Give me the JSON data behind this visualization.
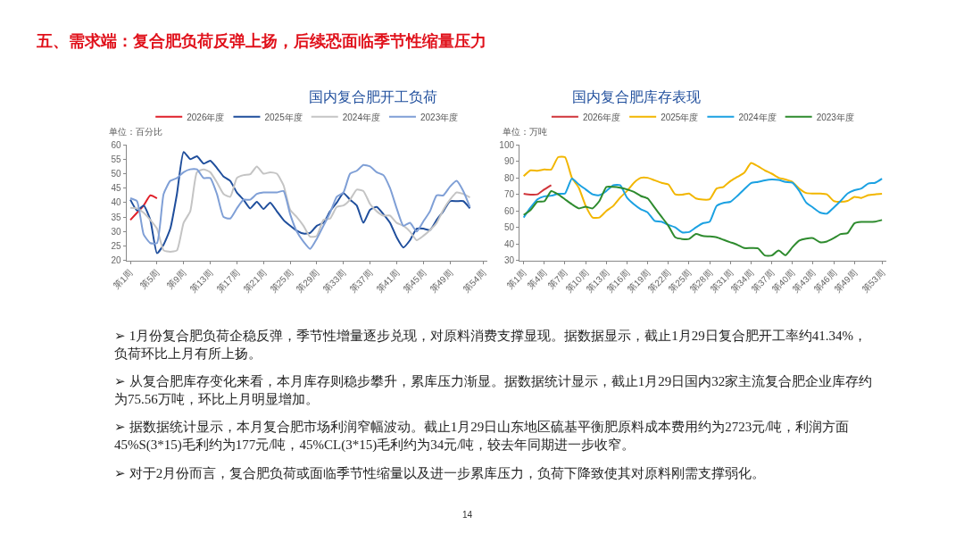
{
  "chart_data": [
    {
      "type": "line",
      "title": "国内复合肥开工负荷",
      "ylabel": "单位：百分比",
      "legend": "top",
      "marker": "none",
      "grid": false,
      "categories": [
        "第1周",
        null,
        null,
        null,
        "第5周",
        null,
        null,
        null,
        "第9周",
        null,
        null,
        null,
        "第13周",
        null,
        null,
        null,
        "第17周",
        null,
        null,
        null,
        "第21周",
        null,
        null,
        null,
        "第25周",
        null,
        null,
        null,
        "第29周",
        null,
        null,
        null,
        "第33周",
        null,
        null,
        null,
        "第37周",
        null,
        null,
        null,
        "第41周",
        null,
        null,
        null,
        "第45周",
        null,
        null,
        null,
        "第49周",
        null,
        null,
        null,
        null,
        "第54周"
      ],
      "ylim": [
        20,
        60
      ],
      "yticks": [
        20,
        25,
        30,
        35,
        40,
        45,
        50,
        55,
        60
      ],
      "series": [
        {
          "name": "2026年度",
          "color": "#e0202a",
          "values": [
            34,
            36.5,
            39,
            42.5,
            41.5,
            null,
            null,
            null,
            null,
            null,
            null,
            null,
            null,
            null,
            null,
            null,
            null,
            null,
            null,
            null,
            null,
            null,
            null,
            null,
            null,
            null,
            null,
            null,
            null,
            null,
            null,
            null,
            null,
            null,
            null,
            null,
            null,
            null,
            null,
            null,
            null,
            null,
            null,
            null,
            null,
            null,
            null,
            null,
            null,
            null,
            null,
            null,
            null,
            null
          ]
        },
        {
          "name": "2025年度",
          "color": "#1f4e9c",
          "values": [
            41,
            37.3,
            39,
            34,
            22.5,
            25.5,
            31,
            43,
            57.5,
            55,
            56,
            53.5,
            54.5,
            52,
            49,
            47.5,
            43.5,
            41,
            38,
            40.3,
            37.8,
            40,
            37,
            34,
            32,
            30.3,
            29.3,
            29.5,
            32,
            33,
            37,
            40,
            43.3,
            41,
            39,
            33,
            37.5,
            38.5,
            36,
            33,
            28,
            24.5,
            27,
            31,
            31,
            30.5,
            34,
            37,
            40.5,
            40.5,
            40.5,
            38,
            null,
            null
          ]
        },
        {
          "name": "2024年度",
          "color": "#c4c4c4",
          "values": [
            38.2,
            38,
            36.5,
            34,
            31,
            23.5,
            23,
            23.5,
            33,
            37,
            50.5,
            51.5,
            50.5,
            47,
            43,
            42,
            48.5,
            49.5,
            49.8,
            52.5,
            50,
            50.5,
            50,
            46,
            37.5,
            35,
            32,
            28.2,
            28.5,
            34,
            34.5,
            38.5,
            39,
            41,
            44.5,
            44,
            39.5,
            37,
            35.5,
            35.5,
            33,
            32,
            30,
            27,
            28.5,
            30.5,
            33,
            37.5,
            41,
            43.5,
            43,
            41.8,
            null,
            null
          ]
        },
        {
          "name": "2023年度",
          "color": "#7f9fd6",
          "values": [
            41.5,
            40.5,
            29,
            26,
            26,
            43,
            47.5,
            48.5,
            50.5,
            51.5,
            51.5,
            48.5,
            48.5,
            43,
            35,
            34.5,
            38,
            41,
            41,
            43,
            43.5,
            43.5,
            43.5,
            44,
            36,
            30,
            26.5,
            24,
            27.5,
            32,
            36.5,
            42,
            43.5,
            50,
            51,
            53,
            52.5,
            50.5,
            49.5,
            45,
            38,
            32,
            33,
            30,
            33.5,
            37,
            42.5,
            42.5,
            45.5,
            47.5,
            44,
            38.5,
            null,
            null
          ]
        }
      ]
    },
    {
      "type": "line",
      "title": "国内复合肥库存表现",
      "ylabel": "单位：万吨",
      "legend": "top",
      "marker": "none",
      "grid": false,
      "categories": [
        "第1周",
        null,
        null,
        "第4周",
        null,
        null,
        "第7周",
        null,
        null,
        "第10周",
        null,
        null,
        "第13周",
        null,
        null,
        "第16周",
        null,
        null,
        "第19周",
        null,
        null,
        "第22周",
        null,
        null,
        "第25周",
        null,
        null,
        "第28周",
        null,
        null,
        "第31周",
        null,
        null,
        "第34周",
        null,
        null,
        "第37周",
        null,
        null,
        "第40周",
        null,
        null,
        "第43周",
        null,
        null,
        "第46周",
        null,
        null,
        "第49周",
        null,
        null,
        null,
        "第53周"
      ],
      "ylim": [
        30,
        100
      ],
      "yticks": [
        30,
        40,
        50,
        60,
        70,
        80,
        90,
        100
      ],
      "series": [
        {
          "name": "2026年度",
          "color": "#d0343a",
          "values": [
            70.3,
            69.8,
            70,
            73,
            75.6,
            null,
            null,
            null,
            null,
            null,
            null,
            null,
            null,
            null,
            null,
            null,
            null,
            null,
            null,
            null,
            null,
            null,
            null,
            null,
            null,
            null,
            null,
            null,
            null,
            null,
            null,
            null,
            null,
            null,
            null,
            null,
            null,
            null,
            null,
            null,
            null,
            null,
            null,
            null,
            null,
            null,
            null,
            null,
            null,
            null,
            null,
            null,
            null
          ]
        },
        {
          "name": "2025年度",
          "color": "#f2b600",
          "values": [
            81,
            84.5,
            84.3,
            85,
            85,
            92.5,
            92.5,
            80,
            74,
            63,
            56,
            56,
            60,
            63,
            68,
            72,
            77,
            80,
            80,
            78.5,
            77,
            76,
            70,
            69.8,
            70.5,
            67.5,
            66.8,
            67,
            73.5,
            74.5,
            78,
            80.5,
            83,
            89,
            87,
            84.5,
            82.5,
            80,
            79,
            77.5,
            73.5,
            70.8,
            70.5,
            70.5,
            70,
            66,
            65.5,
            66,
            68.5,
            67.8,
            69.5,
            70,
            70.3
          ]
        },
        {
          "name": "2024年度",
          "color": "#1ba1e2",
          "values": [
            56,
            62,
            67,
            68.8,
            69.2,
            70.3,
            70.5,
            79.5,
            76,
            73,
            70,
            69.5,
            72,
            75.5,
            75.5,
            68,
            64,
            61,
            59,
            54,
            53.5,
            51.5,
            50,
            47,
            47.2,
            50,
            52.5,
            53.5,
            63,
            64.8,
            65.5,
            69,
            73,
            76.8,
            77.5,
            78.5,
            79,
            78.7,
            77.5,
            77,
            72,
            65,
            62,
            59,
            58.3,
            62,
            66,
            70.5,
            72.5,
            73.5,
            76.5,
            77,
            79.5
          ]
        },
        {
          "name": "2023年度",
          "color": "#2e8b2e",
          "values": [
            57.5,
            60.5,
            65.5,
            65.8,
            72,
            70,
            67,
            64,
            61.5,
            62.5,
            61.5,
            66,
            74.5,
            74.5,
            74,
            73,
            71.5,
            69,
            67.5,
            62,
            56.5,
            51,
            44,
            43,
            43,
            46,
            44.8,
            44.5,
            44,
            42.5,
            41,
            39.5,
            37.5,
            37.5,
            37.3,
            33,
            33,
            36,
            33.2,
            38,
            42,
            43.2,
            43.5,
            41,
            41.5,
            43.5,
            46,
            46.5,
            52.5,
            53.3,
            53.3,
            53.5,
            54.5
          ]
        }
      ]
    },
    {
      "type": "other",
      "title": "五、需求端：复合肥负荷反弹上扬，后续恐面临季节性缩量压力",
      "annotations": [
        "➢ 1月份复合肥负荷企稳反弹，季节性增量逐步兑现，对原料消费支撑显现。据数据显示，截止1月29日复合肥开工率约41.34%，负荷环比上月有所上扬。",
        "➢ 从复合肥库存变化来看，本月库存则稳步攀升，累库压力渐显。据数据统计显示，截止1月29日国内32家主流复合肥企业库存约为75.56万吨，环比上月明显增加。",
        "➢ 据数据统计显示，本月复合肥市场利润窄幅波动。截止1月29日山东地区硫基平衡肥原料成本费用约为2723元/吨，利润方面45%S(3*15)毛利约为177元/吨，45%CL(3*15)毛利约为34元/吨，较去年同期进一步收窄。",
        "➢ 对于2月份而言，复合肥负荷或面临季节性缩量以及进一步累库压力，负荷下降致使其对原料刚需支撑弱化。",
        "14"
      ]
    }
  ]
}
